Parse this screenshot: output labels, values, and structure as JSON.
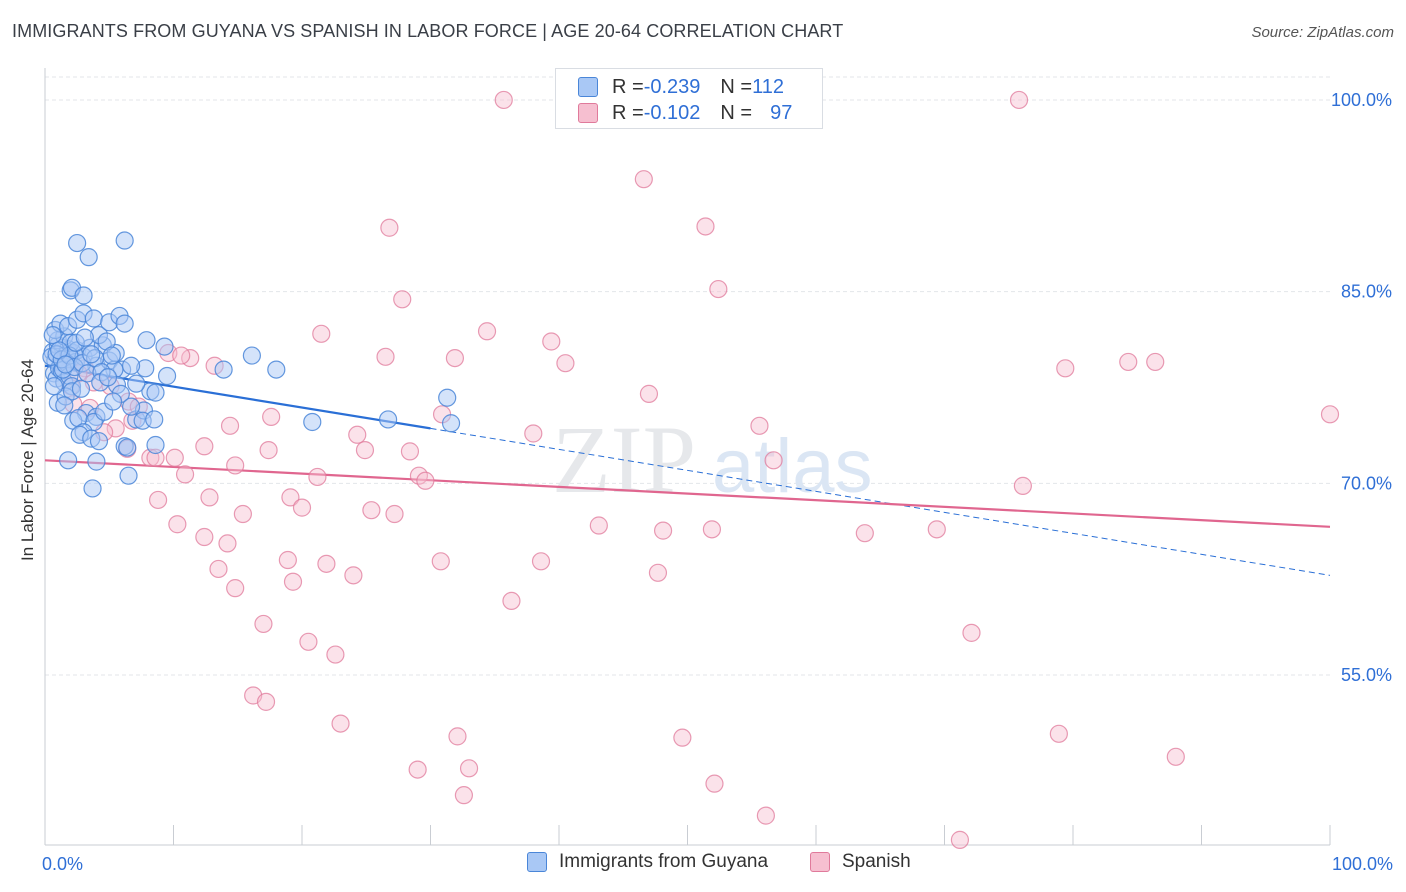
{
  "title": "IMMIGRANTS FROM GUYANA VS SPANISH IN LABOR FORCE | AGE 20-64 CORRELATION CHART",
  "source": "Source: ZipAtlas.com",
  "watermark": {
    "zip": "ZIP",
    "atlas": "atlas"
  },
  "colors": {
    "blue_fill": "#a9c8f5",
    "blue_stroke": "#4a86d8",
    "blue_line": "#2a6fd6",
    "pink_fill": "#f6bfd0",
    "pink_stroke": "#e07a9b",
    "pink_line": "#e0668f",
    "axis_label": "#2f6fd6",
    "grid": "#e3e6ea"
  },
  "legend": {
    "rows": [
      {
        "r_label": "R = ",
        "r_value": "-0.239",
        "n_label": "N = ",
        "n_value": "112"
      },
      {
        "r_label": "R = ",
        "r_value": "-0.102",
        "n_label": "N = ",
        "n_value": "97"
      }
    ]
  },
  "bottom_legend": [
    "Immigrants from Guyana",
    "Spanish"
  ],
  "chart_data": {
    "type": "scatter",
    "title": "IMMIGRANTS FROM GUYANA VS SPANISH IN LABOR FORCE | AGE 20-64 CORRELATION CHART",
    "xlabel": "",
    "ylabel": "In Labor Force | Age 20-64",
    "xlim": [
      0,
      100
    ],
    "ylim": [
      41.7,
      102.5
    ],
    "x_tick_labels": [
      "0.0%",
      "100.0%"
    ],
    "y_ticks": [
      55,
      70,
      85,
      100
    ],
    "y_tick_labels": [
      "55.0%",
      "70.0%",
      "85.0%",
      "100.0%"
    ],
    "grid": true,
    "legend_position": "top-center",
    "series": [
      {
        "name": "Immigrants from Guyana",
        "r": -0.239,
        "n": 112,
        "trend": {
          "x0": 0,
          "y0": 79.2,
          "x1": 30,
          "y1": 74.3,
          "dash_to_x": 100,
          "dash_to_y": 62.8
        },
        "points": [
          [
            0.6,
            80.3
          ],
          [
            0.8,
            79.6
          ],
          [
            1.0,
            80.8
          ],
          [
            1.2,
            79.2
          ],
          [
            1.4,
            80.6
          ],
          [
            1.6,
            80.0
          ],
          [
            1.8,
            80.5
          ],
          [
            2.0,
            79.8
          ],
          [
            2.2,
            80.2
          ],
          [
            2.4,
            79.5
          ],
          [
            0.7,
            78.6
          ],
          [
            0.9,
            78.2
          ],
          [
            1.1,
            79.0
          ],
          [
            1.3,
            78.8
          ],
          [
            1.5,
            77.9
          ],
          [
            1.7,
            79.4
          ],
          [
            1.9,
            78.4
          ],
          [
            2.1,
            77.6
          ],
          [
            0.5,
            79.9
          ],
          [
            1.0,
            81.2
          ],
          [
            1.5,
            81.5
          ],
          [
            2.0,
            81.0
          ],
          [
            2.5,
            80.4
          ],
          [
            3.0,
            79.9
          ],
          [
            3.5,
            80.6
          ],
          [
            4.0,
            79.2
          ],
          [
            4.5,
            80.8
          ],
          [
            5.0,
            79.6
          ],
          [
            5.5,
            80.2
          ],
          [
            6.0,
            78.9
          ],
          [
            0.8,
            82.0
          ],
          [
            1.2,
            82.5
          ],
          [
            1.8,
            82.3
          ],
          [
            2.5,
            82.8
          ],
          [
            3.0,
            83.3
          ],
          [
            3.8,
            82.9
          ],
          [
            4.2,
            81.6
          ],
          [
            5.0,
            82.6
          ],
          [
            5.8,
            83.1
          ],
          [
            6.2,
            82.5
          ],
          [
            2.0,
            85.1
          ],
          [
            2.1,
            85.3
          ],
          [
            3.0,
            84.7
          ],
          [
            2.5,
            88.8
          ],
          [
            3.4,
            87.7
          ],
          [
            6.2,
            89.0
          ],
          [
            1.0,
            76.3
          ],
          [
            1.6,
            76.8
          ],
          [
            2.1,
            77.2
          ],
          [
            2.8,
            77.4
          ],
          [
            3.2,
            75.5
          ],
          [
            4.0,
            75.2
          ],
          [
            3.8,
            74.8
          ],
          [
            2.2,
            74.9
          ],
          [
            2.6,
            75.1
          ],
          [
            3.0,
            74.0
          ],
          [
            4.6,
            75.6
          ],
          [
            2.7,
            73.8
          ],
          [
            3.6,
            73.5
          ],
          [
            4.2,
            73.3
          ],
          [
            1.8,
            71.8
          ],
          [
            4.0,
            71.7
          ],
          [
            6.2,
            72.9
          ],
          [
            6.4,
            72.8
          ],
          [
            7.1,
            75.0
          ],
          [
            7.7,
            75.7
          ],
          [
            7.6,
            74.9
          ],
          [
            8.5,
            75.0
          ],
          [
            8.6,
            73.0
          ],
          [
            3.7,
            69.6
          ],
          [
            6.5,
            70.6
          ],
          [
            8.2,
            77.2
          ],
          [
            8.6,
            77.1
          ],
          [
            9.5,
            78.4
          ],
          [
            7.1,
            77.8
          ],
          [
            7.8,
            79.0
          ],
          [
            6.7,
            79.2
          ],
          [
            5.4,
            78.9
          ],
          [
            5.6,
            77.7
          ],
          [
            4.8,
            81.1
          ],
          [
            7.9,
            81.2
          ],
          [
            9.3,
            80.7
          ],
          [
            13.9,
            78.9
          ],
          [
            16.1,
            80.0
          ],
          [
            18.0,
            78.9
          ],
          [
            20.8,
            74.8
          ],
          [
            31.3,
            76.7
          ],
          [
            31.6,
            74.7
          ],
          [
            26.7,
            75.0
          ],
          [
            1.4,
            78.9
          ],
          [
            0.9,
            80.1
          ],
          [
            1.3,
            79.7
          ],
          [
            1.9,
            80.0
          ],
          [
            2.3,
            79.1
          ],
          [
            2.9,
            79.4
          ],
          [
            3.3,
            78.6
          ],
          [
            3.9,
            79.8
          ],
          [
            4.4,
            78.7
          ],
          [
            5.2,
            80.0
          ],
          [
            5.9,
            77.0
          ],
          [
            6.7,
            76.0
          ],
          [
            0.6,
            81.6
          ],
          [
            1.1,
            80.4
          ],
          [
            1.6,
            79.3
          ],
          [
            2.4,
            81.0
          ],
          [
            3.1,
            81.4
          ],
          [
            3.6,
            80.1
          ],
          [
            4.3,
            77.9
          ],
          [
            4.9,
            78.3
          ],
          [
            5.3,
            76.4
          ],
          [
            0.7,
            77.6
          ],
          [
            1.5,
            76.1
          ]
        ]
      },
      {
        "name": "Spanish",
        "r": -0.102,
        "n": 97,
        "trend": {
          "x0": 0,
          "y0": 71.8,
          "x1": 100,
          "y1": 66.6
        },
        "points": [
          [
            35.7,
            100.0
          ],
          [
            75.8,
            100.0
          ],
          [
            46.6,
            93.8
          ],
          [
            26.8,
            90.0
          ],
          [
            51.4,
            90.1
          ],
          [
            52.4,
            85.2
          ],
          [
            27.8,
            84.4
          ],
          [
            21.5,
            81.7
          ],
          [
            34.4,
            81.9
          ],
          [
            39.4,
            81.1
          ],
          [
            26.5,
            79.9
          ],
          [
            31.9,
            79.8
          ],
          [
            40.5,
            79.4
          ],
          [
            9.6,
            80.2
          ],
          [
            11.3,
            79.8
          ],
          [
            47.0,
            77.0
          ],
          [
            79.4,
            79.0
          ],
          [
            84.3,
            79.5
          ],
          [
            86.4,
            79.5
          ],
          [
            100.0,
            75.4
          ],
          [
            30.9,
            75.4
          ],
          [
            38.0,
            73.9
          ],
          [
            55.6,
            74.5
          ],
          [
            17.6,
            75.2
          ],
          [
            14.4,
            74.5
          ],
          [
            6.8,
            74.9
          ],
          [
            5.5,
            74.3
          ],
          [
            4.6,
            74.0
          ],
          [
            6.5,
            76.4
          ],
          [
            3.8,
            77.9
          ],
          [
            2.0,
            77.6
          ],
          [
            2.2,
            76.2
          ],
          [
            3.5,
            75.9
          ],
          [
            24.3,
            73.8
          ],
          [
            8.2,
            72.0
          ],
          [
            8.6,
            72.0
          ],
          [
            10.1,
            72.0
          ],
          [
            6.4,
            72.7
          ],
          [
            12.4,
            72.9
          ],
          [
            14.8,
            71.4
          ],
          [
            17.4,
            72.6
          ],
          [
            24.9,
            72.6
          ],
          [
            28.4,
            72.5
          ],
          [
            56.7,
            71.8
          ],
          [
            29.1,
            70.6
          ],
          [
            10.9,
            70.7
          ],
          [
            21.2,
            70.5
          ],
          [
            29.6,
            70.2
          ],
          [
            76.1,
            69.8
          ],
          [
            8.8,
            68.7
          ],
          [
            12.8,
            68.9
          ],
          [
            19.1,
            68.9
          ],
          [
            20.0,
            68.1
          ],
          [
            25.4,
            67.9
          ],
          [
            27.2,
            67.6
          ],
          [
            15.4,
            67.6
          ],
          [
            10.3,
            66.8
          ],
          [
            12.4,
            65.8
          ],
          [
            43.1,
            66.7
          ],
          [
            48.1,
            66.3
          ],
          [
            51.9,
            66.4
          ],
          [
            63.8,
            66.1
          ],
          [
            69.4,
            66.4
          ],
          [
            14.2,
            65.3
          ],
          [
            18.9,
            64.0
          ],
          [
            21.9,
            63.7
          ],
          [
            30.8,
            63.9
          ],
          [
            38.6,
            63.9
          ],
          [
            47.7,
            63.0
          ],
          [
            13.5,
            63.3
          ],
          [
            24.0,
            62.8
          ],
          [
            14.8,
            61.8
          ],
          [
            19.3,
            62.3
          ],
          [
            36.3,
            60.8
          ],
          [
            17.0,
            59.0
          ],
          [
            72.1,
            58.3
          ],
          [
            20.5,
            57.6
          ],
          [
            22.6,
            56.6
          ],
          [
            16.2,
            53.4
          ],
          [
            17.2,
            52.9
          ],
          [
            23.0,
            51.2
          ],
          [
            32.1,
            50.2
          ],
          [
            49.6,
            50.1
          ],
          [
            78.9,
            50.4
          ],
          [
            88.0,
            48.6
          ],
          [
            29.0,
            47.6
          ],
          [
            33.0,
            47.7
          ],
          [
            52.1,
            46.5
          ],
          [
            32.6,
            45.6
          ],
          [
            56.1,
            44.0
          ],
          [
            71.2,
            42.1
          ],
          [
            3.1,
            79.0
          ],
          [
            5.1,
            77.6
          ],
          [
            2.6,
            78.6
          ],
          [
            7.3,
            76.0
          ],
          [
            10.6,
            80.0
          ],
          [
            13.2,
            79.2
          ]
        ]
      }
    ]
  }
}
